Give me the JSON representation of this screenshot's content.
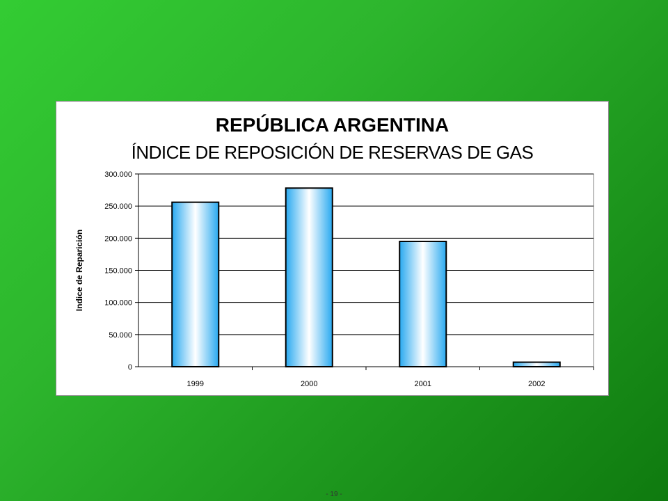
{
  "chart_data": {
    "type": "bar",
    "title": "REPÚBLICA ARGENTINA",
    "subtitle": "ÍNDICE DE REPOSICIÓN DE RESERVAS DE GAS",
    "ylabel": "Indice de Reparición",
    "xlabel": "",
    "categories": [
      "1999",
      "2000",
      "2001",
      "2002"
    ],
    "values": [
      256000,
      278000,
      195000,
      7000
    ],
    "ylim": [
      0,
      300000
    ],
    "yticks": [
      "0",
      "50.000",
      "100.000",
      "150.000",
      "200.000",
      "250.000",
      "300.000"
    ],
    "grid": true,
    "legend": "none",
    "colors": {
      "bar_edge": "#29a9f0",
      "bar_center": "#ffffff",
      "bar_outline": "#000000"
    }
  },
  "footer": {
    "page_number": "- 19 -"
  }
}
